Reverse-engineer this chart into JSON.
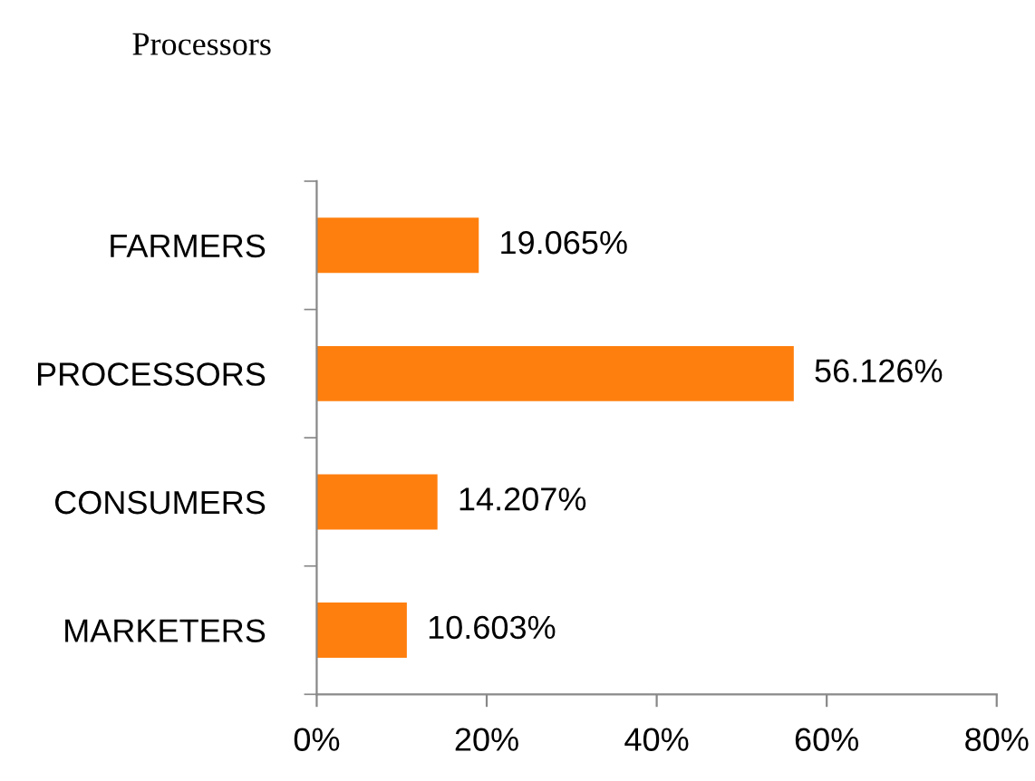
{
  "chart_data": {
    "type": "bar",
    "orientation": "horizontal",
    "title": "Processors",
    "categories": [
      "FARMERS",
      "PROCESSORS",
      "CONSUMERS",
      "MARKETERS"
    ],
    "values": [
      19.065,
      56.126,
      14.207,
      10.603
    ],
    "value_labels": [
      "19.065%",
      "56.126%",
      "14.207%",
      "10.603%"
    ],
    "color": "#ff7f0e",
    "xlim": [
      0,
      80
    ],
    "xticks": [
      {
        "value": 0,
        "label": "0%"
      },
      {
        "value": 20,
        "label": "20%"
      },
      {
        "value": 40,
        "label": "40%"
      },
      {
        "value": 60,
        "label": "60%"
      },
      {
        "value": 80,
        "label": "80%"
      }
    ],
    "grid": false,
    "legend": false
  }
}
